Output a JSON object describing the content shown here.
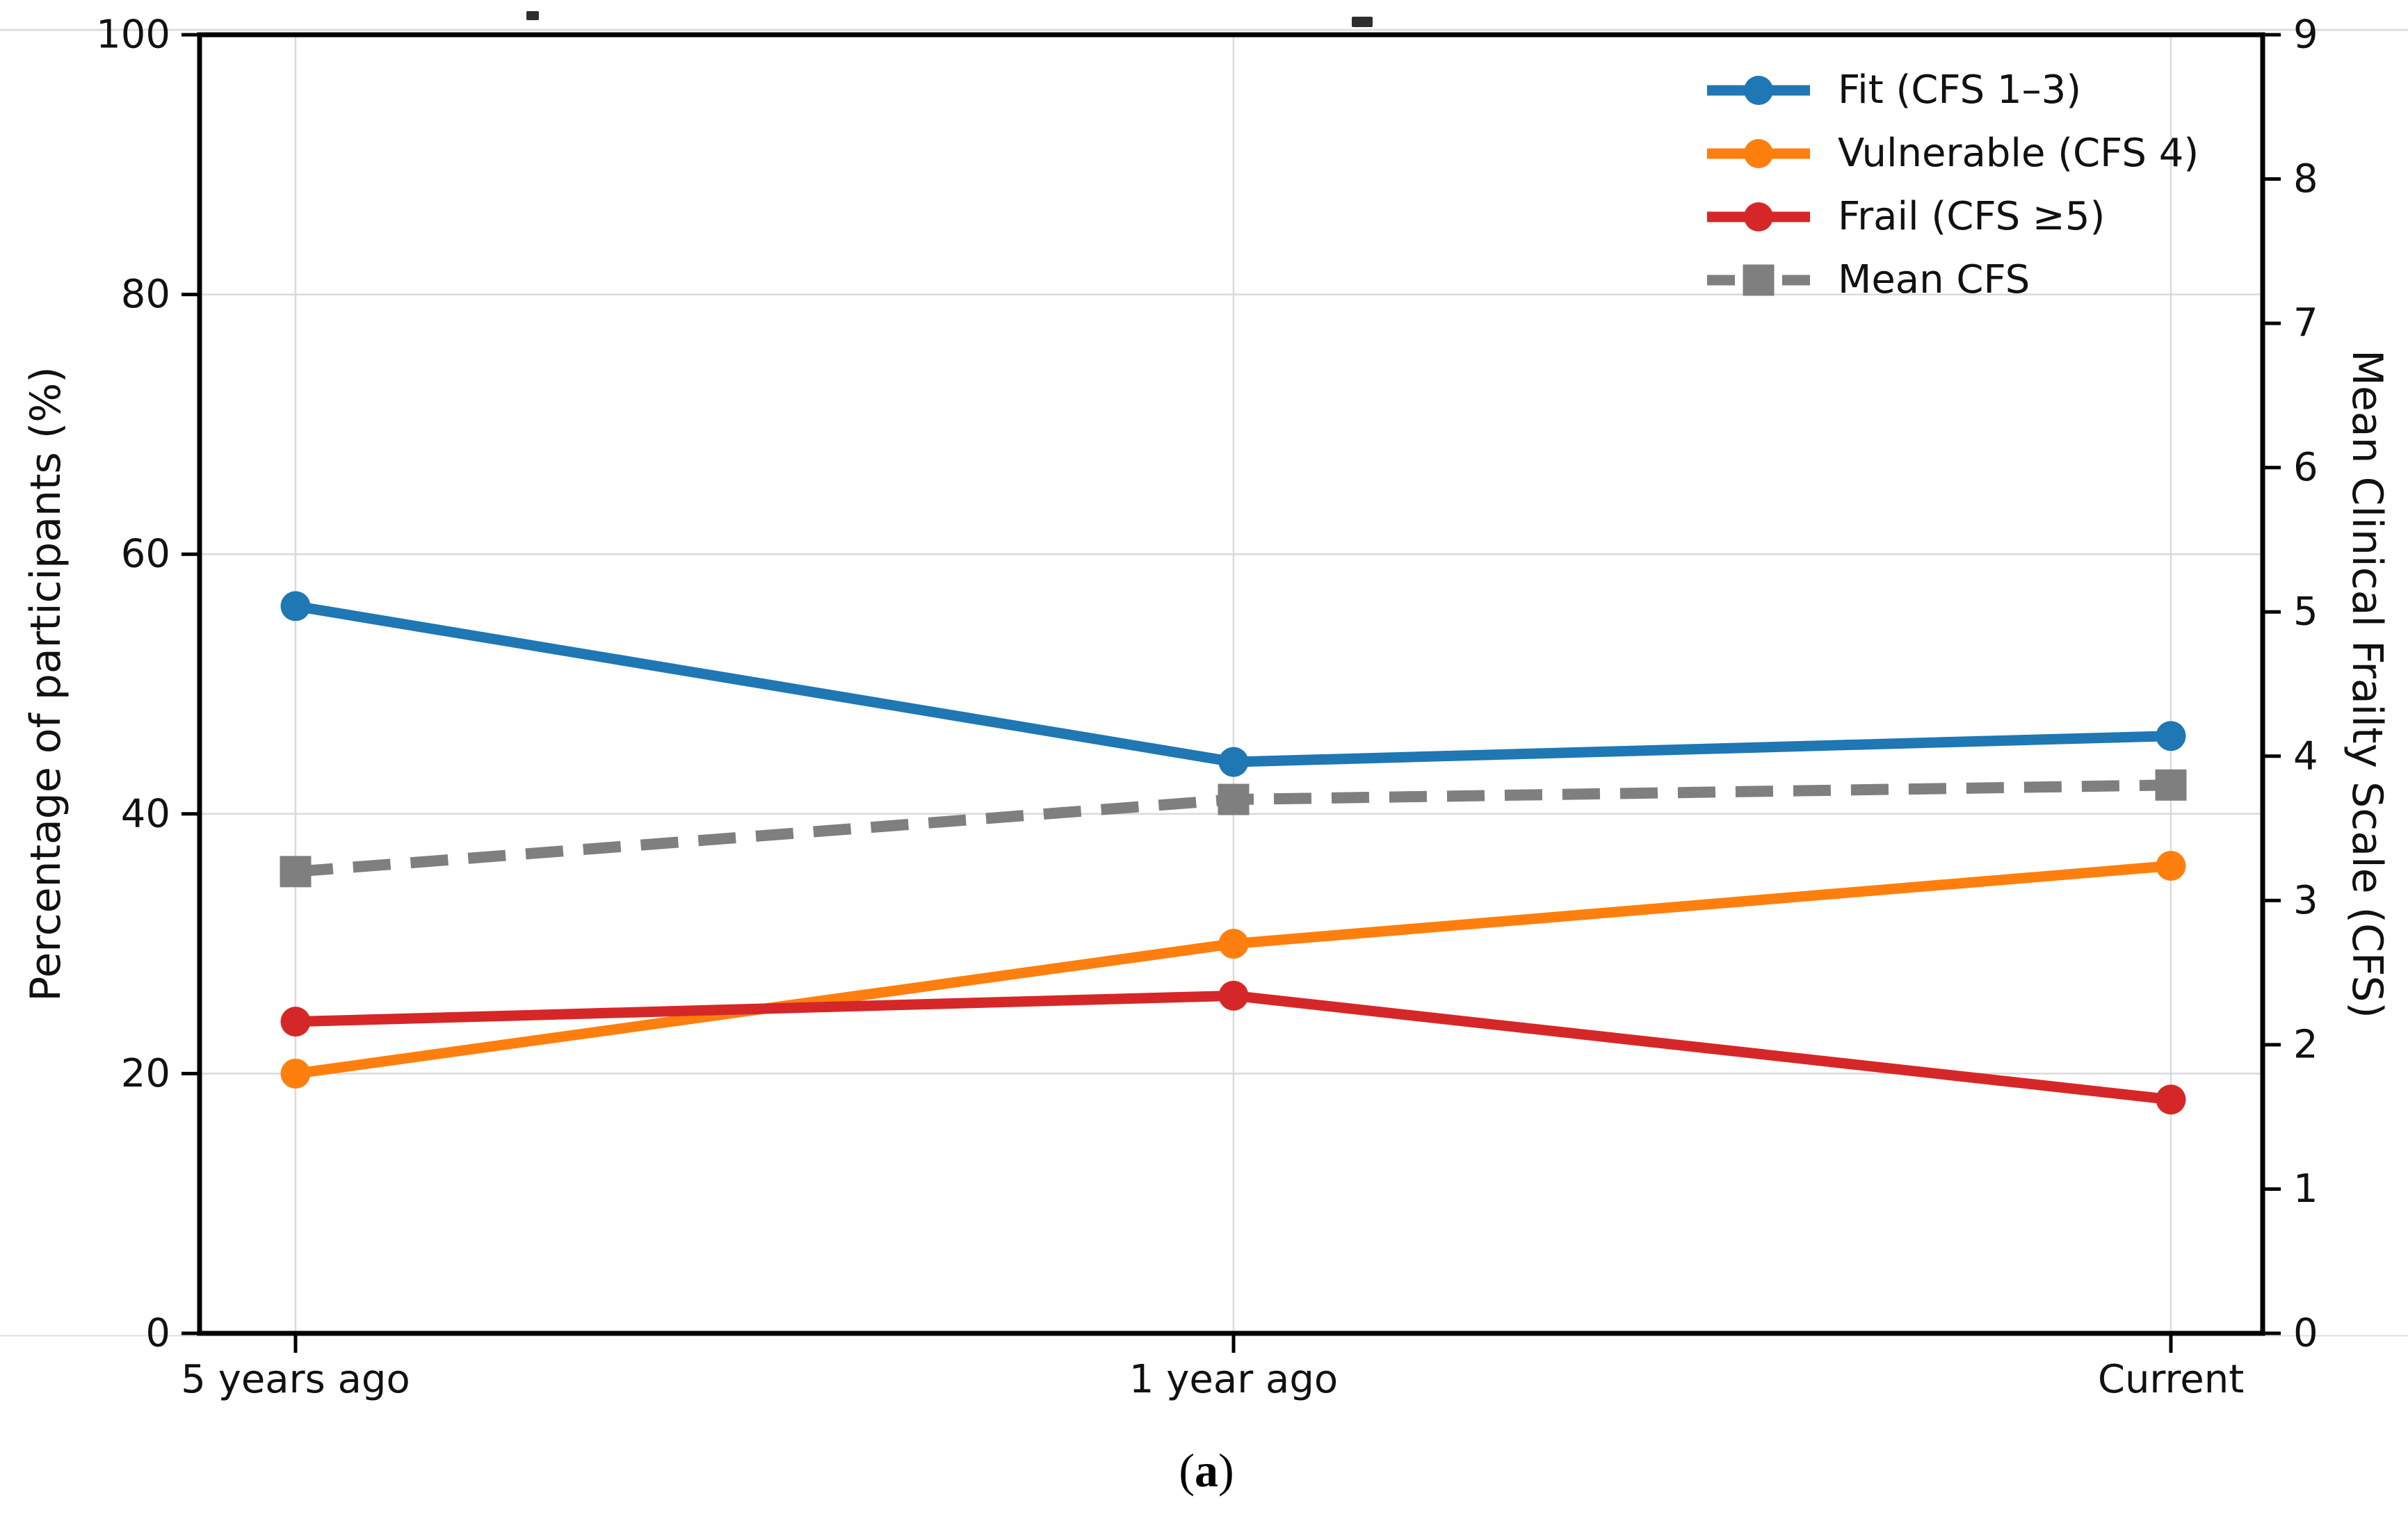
{
  "figure": {
    "caption": {
      "open": "(",
      "label": "a",
      "close": ")"
    }
  },
  "chart_data": {
    "type": "line",
    "categories": [
      "5 years ago",
      "1 year ago",
      "Current"
    ],
    "left_axis": {
      "label": "Percentage of participants (%)",
      "min": 0,
      "max": 100,
      "ticks": [
        0,
        20,
        40,
        60,
        80,
        100
      ]
    },
    "right_axis": {
      "label": "Mean Clinical Frailty Scale (CFS)",
      "min": 0,
      "max": 9,
      "ticks": [
        0,
        1,
        2,
        3,
        4,
        5,
        6,
        7,
        8,
        9
      ]
    },
    "grid": true,
    "legend_position": "top-right",
    "series": [
      {
        "name": "Fit (CFS 1–3)",
        "axis": "left",
        "values": [
          56,
          44,
          46
        ],
        "color": "#1f77b4",
        "marker": "circle",
        "line": "solid"
      },
      {
        "name": "Vulnerable (CFS 4)",
        "axis": "left",
        "values": [
          20,
          30,
          36
        ],
        "color": "#ff7f0e",
        "marker": "circle",
        "line": "solid"
      },
      {
        "name": "Frail (CFS ≥5)",
        "axis": "left",
        "values": [
          24,
          26,
          18
        ],
        "color": "#d62728",
        "marker": "circle",
        "line": "solid"
      },
      {
        "name": "Mean CFS",
        "axis": "right",
        "values": [
          3.2,
          3.7,
          3.8
        ],
        "color": "#7f7f7f",
        "marker": "square",
        "line": "dashed"
      }
    ],
    "colors": {
      "frame": "#000000",
      "grid": "#d9d9d9",
      "text": "#111111"
    }
  }
}
